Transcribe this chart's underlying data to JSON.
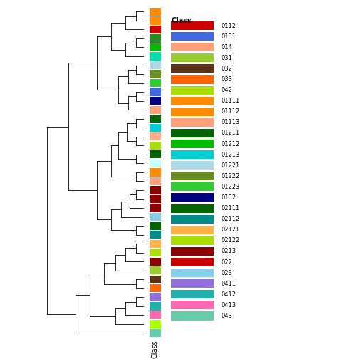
{
  "legend_title": "Class",
  "xlabel": "Class",
  "figsize": [
    5.04,
    5.04
  ],
  "dpi": 100,
  "leaf_colors_top_bottom": [
    "#FF8C00",
    "#FF8C00",
    "#CC0000",
    "#228B22",
    "#00BB00",
    "#00DDAA",
    "#ADD8E6",
    "#6B8E23",
    "#32CD32",
    "#4169E1",
    "#000080",
    "#FFA07A",
    "#006400",
    "#00CED1",
    "#FFAA88",
    "#AADD00",
    "#006400",
    "#CCFFFF",
    "#FF8C00",
    "#FFA07A",
    "#8B0000",
    "#8B0000",
    "#8B0000",
    "#87CEEB",
    "#006400",
    "#008B8B",
    "#FFB347",
    "#AADD00",
    "#8B0000",
    "#9ACD32",
    "#5C3317",
    "#FF6600",
    "#9370DB",
    "#20B2AA",
    "#FF69B4",
    "#AAFF00",
    "#66CDAA"
  ],
  "legend_entries": [
    {
      "label": "0112",
      "color": "#CC0000"
    },
    {
      "label": "0131",
      "color": "#4169E1"
    },
    {
      "label": "014",
      "color": "#FFA07A"
    },
    {
      "label": "031",
      "color": "#9ACD32"
    },
    {
      "label": "032",
      "color": "#5C3317"
    },
    {
      "label": "033",
      "color": "#FF6600"
    },
    {
      "label": "042",
      "color": "#AADD00"
    },
    {
      "label": "01111",
      "color": "#FF8C00"
    },
    {
      "label": "01112",
      "color": "#FF8C00"
    },
    {
      "label": "01113",
      "color": "#FFA07A"
    },
    {
      "label": "01211",
      "color": "#006400"
    },
    {
      "label": "01212",
      "color": "#00BB00"
    },
    {
      "label": "01213",
      "color": "#00CED1"
    },
    {
      "label": "01221",
      "color": "#ADD8E6"
    },
    {
      "label": "01222",
      "color": "#6B8E23"
    },
    {
      "label": "01223",
      "color": "#32CD32"
    },
    {
      "label": "0132",
      "color": "#000080"
    },
    {
      "label": "02111",
      "color": "#006400"
    },
    {
      "label": "02112",
      "color": "#008B8B"
    },
    {
      "label": "02121",
      "color": "#FFB347"
    },
    {
      "label": "02122",
      "color": "#AADD00"
    },
    {
      "label": "0213",
      "color": "#8B0000"
    },
    {
      "label": "022",
      "color": "#CC0000"
    },
    {
      "label": "023",
      "color": "#87CEEB"
    },
    {
      "label": "0411",
      "color": "#9370DB"
    },
    {
      "label": "0412",
      "color": "#20B2AA"
    },
    {
      "label": "0413",
      "color": "#FF69B4"
    },
    {
      "label": "043",
      "color": "#66CDAA"
    }
  ],
  "dendrogram": {
    "line_width": 0.6,
    "line_color": "black"
  }
}
